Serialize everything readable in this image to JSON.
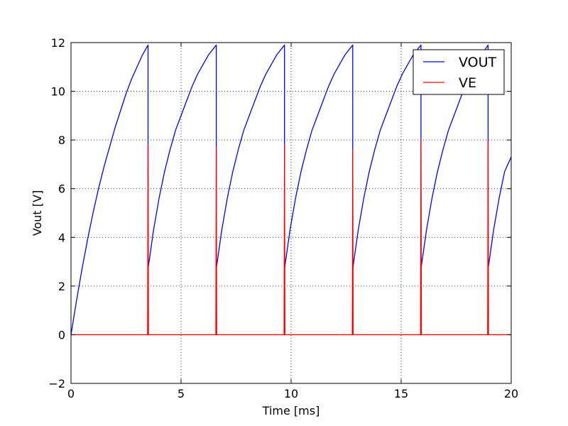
{
  "chart_data": {
    "type": "line",
    "xlabel": "Time [ms]",
    "ylabel": "Vout [V]",
    "xlim": [
      0,
      20
    ],
    "ylim": [
      -2,
      12
    ],
    "x_ticks": [
      0,
      5,
      10,
      15,
      20
    ],
    "y_ticks": [
      -2,
      0,
      2,
      4,
      6,
      8,
      10,
      12
    ],
    "x_tick_labels": [
      "0",
      "5",
      "10",
      "15",
      "20"
    ],
    "y_tick_labels": [
      "−2",
      "0",
      "2",
      "4",
      "6",
      "8",
      "10",
      "12"
    ],
    "grid": true,
    "legend_position": "top-right",
    "series": [
      {
        "name": "VOUT",
        "color": "#0000ff",
        "x": [
          0.0,
          0.25,
          0.5,
          0.75,
          1.0,
          1.25,
          1.5,
          1.75,
          2.0,
          2.25,
          2.5,
          2.75,
          3.0,
          3.25,
          3.5,
          3.5,
          3.5,
          3.75,
          4.0,
          4.25,
          4.5,
          4.75,
          5.0,
          5.25,
          5.5,
          5.75,
          6.0,
          6.25,
          6.6,
          6.6,
          6.6,
          6.85,
          7.1,
          7.35,
          7.6,
          7.85,
          8.1,
          8.35,
          8.6,
          8.85,
          9.1,
          9.35,
          9.7,
          9.7,
          9.7,
          9.95,
          10.2,
          10.45,
          10.7,
          10.95,
          11.2,
          11.45,
          11.7,
          11.95,
          12.2,
          12.45,
          12.8,
          12.8,
          12.8,
          13.05,
          13.3,
          13.55,
          13.8,
          14.05,
          14.3,
          14.55,
          14.8,
          15.05,
          15.3,
          15.55,
          15.9,
          15.9,
          15.9,
          16.15,
          16.4,
          16.65,
          16.9,
          17.15,
          17.4,
          17.65,
          17.9,
          18.15,
          18.4,
          18.65,
          18.95,
          18.95,
          18.95,
          19.2,
          19.45,
          19.7,
          19.95,
          20.0
        ],
        "y": [
          0.0,
          1.4,
          2.7,
          3.9,
          5.0,
          6.0,
          6.9,
          7.7,
          8.5,
          9.2,
          9.9,
          10.5,
          11.0,
          11.5,
          11.9,
          8.0,
          2.7,
          4.3,
          5.6,
          6.7,
          7.6,
          8.4,
          9.0,
          9.6,
          10.2,
          10.7,
          11.1,
          11.5,
          11.9,
          8.0,
          2.7,
          4.3,
          5.6,
          6.7,
          7.6,
          8.4,
          9.0,
          9.6,
          10.2,
          10.7,
          11.1,
          11.5,
          11.9,
          8.0,
          2.7,
          4.3,
          5.6,
          6.7,
          7.6,
          8.4,
          9.0,
          9.6,
          10.2,
          10.7,
          11.1,
          11.5,
          11.9,
          8.0,
          2.7,
          4.3,
          5.6,
          6.7,
          7.6,
          8.4,
          9.0,
          9.6,
          10.2,
          10.7,
          11.1,
          11.5,
          11.9,
          8.0,
          2.7,
          4.3,
          5.6,
          6.7,
          7.6,
          8.4,
          9.0,
          9.6,
          10.2,
          10.7,
          11.1,
          11.5,
          11.9,
          8.0,
          2.7,
          4.3,
          5.6,
          6.7,
          7.2,
          7.3
        ]
      },
      {
        "name": "VE",
        "color": "#ff0000",
        "x": [
          0.0,
          3.48,
          3.5,
          3.52,
          6.58,
          6.6,
          6.62,
          9.68,
          9.7,
          9.72,
          12.78,
          12.8,
          12.82,
          15.88,
          15.9,
          15.92,
          18.93,
          18.95,
          18.97,
          20.0
        ],
        "y": [
          0.0,
          0.0,
          7.8,
          0.0,
          0.0,
          7.7,
          0.0,
          0.0,
          7.8,
          0.0,
          0.0,
          7.6,
          0.0,
          0.0,
          8.0,
          0.0,
          0.0,
          8.0,
          0.0,
          0.0
        ]
      }
    ]
  }
}
